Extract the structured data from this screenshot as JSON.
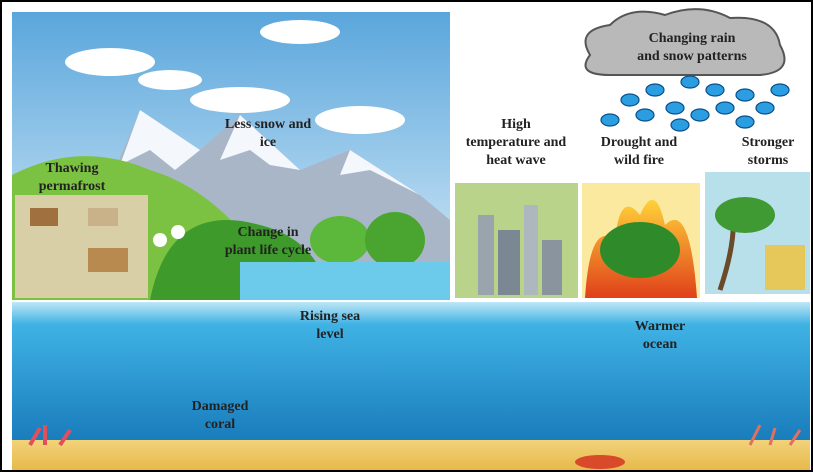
{
  "labels": [
    {
      "lines": [
        "Less snow and",
        "ice"
      ]
    },
    {
      "lines": [
        "Thawing",
        "permafrost"
      ]
    },
    {
      "lines": [
        "Change in",
        "plant life cycle"
      ]
    },
    {
      "lines": [
        "High",
        "temperature and",
        "heat wave"
      ]
    },
    {
      "lines": [
        "Drought and",
        "wild fire"
      ]
    },
    {
      "lines": [
        "Stronger",
        "storms"
      ]
    },
    {
      "lines": [
        "Changing rain",
        "and snow patterns"
      ]
    },
    {
      "lines": [
        "Rising sea",
        "level"
      ]
    },
    {
      "lines": [
        "Warmer",
        "ocean"
      ]
    },
    {
      "lines": [
        "Damaged",
        "coral"
      ]
    }
  ]
}
